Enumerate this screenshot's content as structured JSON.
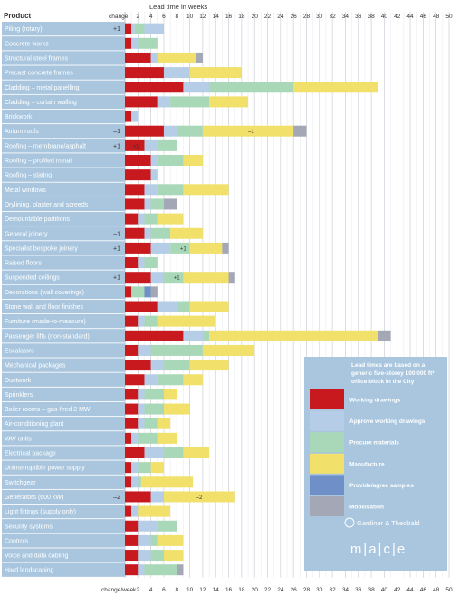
{
  "chart_data": {
    "type": "bar",
    "title": "Lead time in weeks",
    "header_product": "Product",
    "header_change": "change",
    "footer_change": "change/week",
    "xlim": [
      0,
      50
    ],
    "x_ticks": [
      2,
      4,
      6,
      8,
      10,
      12,
      14,
      16,
      18,
      20,
      22,
      24,
      26,
      28,
      30,
      32,
      34,
      36,
      38,
      40,
      42,
      44,
      46,
      48,
      50
    ],
    "grid": true,
    "legend_position": "bottom-right",
    "phases": [
      {
        "key": "wd",
        "name": "Working drawings",
        "color": "#c8191e"
      },
      {
        "key": "awd",
        "name": "Approve working drawings",
        "color": "#b5cde6"
      },
      {
        "key": "pm",
        "name": "Procure materials",
        "color": "#a9d8b8"
      },
      {
        "key": "man",
        "name": "Manufacture",
        "color": "#f1e06a"
      },
      {
        "key": "pas",
        "name": "Provide/agree samples",
        "color": "#6e8fc8"
      },
      {
        "key": "mob",
        "name": "Mobilisation",
        "color": "#a4a8b6"
      }
    ],
    "legend_note": "Lead times are based on a generic five-storey 100,000 ft² office block in the City",
    "legend_brand_1": "Gardiner & Theobald",
    "legend_brand_2": "m|a|c|e",
    "rows": [
      {
        "label": "Piling (rotary)",
        "change": "+1",
        "segments": [
          [
            "wd",
            1
          ],
          [
            "awd",
            0.5
          ],
          [
            "pm",
            1.5
          ],
          [
            "awd",
            3
          ],
          [
            "mob",
            0
          ]
        ],
        "notes": []
      },
      {
        "label": "Concrete works",
        "change": "",
        "segments": [
          [
            "wd",
            1
          ],
          [
            "awd",
            1
          ],
          [
            "pm",
            3
          ]
        ],
        "notes": []
      },
      {
        "label": "Structural steel frames",
        "change": "",
        "segments": [
          [
            "wd",
            4
          ],
          [
            "awd",
            1
          ],
          [
            "man",
            6
          ],
          [
            "mob",
            1
          ]
        ],
        "notes": []
      },
      {
        "label": "Precast concrete frames",
        "change": "",
        "segments": [
          [
            "wd",
            6
          ],
          [
            "awd",
            4
          ],
          [
            "man",
            8
          ]
        ],
        "notes": []
      },
      {
        "label": "Cladding – metal panelling",
        "change": "",
        "segments": [
          [
            "wd",
            9
          ],
          [
            "awd",
            4
          ],
          [
            "pm",
            13
          ],
          [
            "man",
            13
          ]
        ],
        "notes": []
      },
      {
        "label": "Cladding – curtain walling",
        "change": "",
        "segments": [
          [
            "wd",
            5
          ],
          [
            "awd",
            2
          ],
          [
            "pm",
            6
          ],
          [
            "man",
            6
          ]
        ],
        "notes": []
      },
      {
        "label": "Brickwork",
        "change": "",
        "segments": [
          [
            "wd",
            1
          ],
          [
            "awd",
            1
          ]
        ],
        "notes": []
      },
      {
        "label": "Atrium roofs",
        "change": "–1",
        "segments": [
          [
            "wd",
            6
          ],
          [
            "awd",
            2
          ],
          [
            "pm",
            4
          ],
          [
            "man",
            14
          ],
          [
            "mob",
            2
          ]
        ],
        "notes": [
          {
            "text": "–1",
            "at": 19
          }
        ]
      },
      {
        "label": "Roofing – membrane/asphalt",
        "change": "+1",
        "segments": [
          [
            "wd",
            3
          ],
          [
            "awd",
            2
          ],
          [
            "pm",
            3
          ]
        ],
        "notes": [
          {
            "text": "+1",
            "at": 1.2
          }
        ]
      },
      {
        "label": "Roofing – profiled metal",
        "change": "",
        "segments": [
          [
            "wd",
            4
          ],
          [
            "awd",
            1
          ],
          [
            "pm",
            4
          ],
          [
            "man",
            3
          ]
        ],
        "notes": []
      },
      {
        "label": "Roofing – slating",
        "change": "",
        "segments": [
          [
            "wd",
            4
          ],
          [
            "awd",
            1
          ]
        ],
        "notes": []
      },
      {
        "label": "Metal windows",
        "change": "",
        "segments": [
          [
            "wd",
            3
          ],
          [
            "awd",
            2
          ],
          [
            "pm",
            4
          ],
          [
            "man",
            7
          ]
        ],
        "notes": []
      },
      {
        "label": "Drylining, plaster and screeds",
        "change": "",
        "segments": [
          [
            "wd",
            3
          ],
          [
            "awd",
            1
          ],
          [
            "pm",
            2
          ],
          [
            "mob",
            2
          ]
        ],
        "notes": []
      },
      {
        "label": "Demountable partitions",
        "change": "",
        "segments": [
          [
            "wd",
            2
          ],
          [
            "awd",
            1
          ],
          [
            "pm",
            2
          ],
          [
            "man",
            4
          ]
        ],
        "notes": []
      },
      {
        "label": "General joinery",
        "change": "–1",
        "segments": [
          [
            "wd",
            3
          ],
          [
            "awd",
            1
          ],
          [
            "pm",
            3
          ],
          [
            "man",
            5
          ]
        ],
        "notes": []
      },
      {
        "label": "Specialist bespoke joinery",
        "change": "+1",
        "segments": [
          [
            "wd",
            4
          ],
          [
            "awd",
            3
          ],
          [
            "pm",
            3
          ],
          [
            "man",
            5
          ],
          [
            "mob",
            1
          ]
        ],
        "notes": [
          {
            "text": "+1",
            "at": 8.5
          }
        ]
      },
      {
        "label": "Raised floors",
        "change": "",
        "segments": [
          [
            "wd",
            2
          ],
          [
            "awd",
            1
          ],
          [
            "pm",
            2
          ]
        ],
        "notes": []
      },
      {
        "label": "Suspended ceilings",
        "change": "+1",
        "segments": [
          [
            "wd",
            4
          ],
          [
            "awd",
            2
          ],
          [
            "pm",
            3
          ],
          [
            "man",
            7
          ],
          [
            "mob",
            1
          ]
        ],
        "notes": [
          {
            "text": "+1",
            "at": 7.5
          }
        ]
      },
      {
        "label": "Decorations (wall coverings)",
        "change": "",
        "segments": [
          [
            "wd",
            1
          ],
          [
            "pm",
            2
          ],
          [
            "pas",
            1
          ],
          [
            "mob",
            1
          ]
        ],
        "notes": []
      },
      {
        "label": "Stone wall and floor finishes",
        "change": "",
        "segments": [
          [
            "wd",
            5
          ],
          [
            "awd",
            3
          ],
          [
            "pm",
            2
          ],
          [
            "man",
            6
          ]
        ],
        "notes": []
      },
      {
        "label": "Furniture (made-to-measure)",
        "change": "",
        "segments": [
          [
            "wd",
            2
          ],
          [
            "awd",
            1
          ],
          [
            "pm",
            2
          ],
          [
            "man",
            9
          ]
        ],
        "notes": []
      },
      {
        "label": "Passenger lifts (non-standard)",
        "change": "",
        "segments": [
          [
            "wd",
            9
          ],
          [
            "awd",
            3
          ],
          [
            "pm",
            1
          ],
          [
            "man",
            26
          ],
          [
            "mob",
            2
          ]
        ],
        "notes": []
      },
      {
        "label": "Escalators",
        "change": "",
        "segments": [
          [
            "wd",
            2
          ],
          [
            "awd",
            2
          ],
          [
            "pm",
            8
          ],
          [
            "man",
            8
          ]
        ],
        "notes": []
      },
      {
        "label": "Mechanical packages",
        "change": "",
        "segments": [
          [
            "wd",
            4
          ],
          [
            "awd",
            2
          ],
          [
            "pm",
            4
          ],
          [
            "man",
            6
          ]
        ],
        "notes": []
      },
      {
        "label": "Ductwork",
        "change": "",
        "segments": [
          [
            "wd",
            3
          ],
          [
            "awd",
            2
          ],
          [
            "pm",
            4
          ],
          [
            "man",
            3
          ]
        ],
        "notes": []
      },
      {
        "label": "Sprinklers",
        "change": "",
        "segments": [
          [
            "wd",
            2
          ],
          [
            "awd",
            1
          ],
          [
            "pm",
            3
          ],
          [
            "man",
            2
          ]
        ],
        "notes": []
      },
      {
        "label": "Boiler rooms – gas-fired 2 MW",
        "change": "",
        "segments": [
          [
            "wd",
            2
          ],
          [
            "awd",
            1
          ],
          [
            "pm",
            3
          ],
          [
            "man",
            4
          ]
        ],
        "notes": []
      },
      {
        "label": "Air-conditioning plant",
        "change": "",
        "segments": [
          [
            "wd",
            2
          ],
          [
            "awd",
            1
          ],
          [
            "pm",
            2
          ],
          [
            "man",
            2
          ]
        ],
        "notes": []
      },
      {
        "label": "VAV units",
        "change": "",
        "segments": [
          [
            "wd",
            1
          ],
          [
            "awd",
            1
          ],
          [
            "pm",
            3
          ],
          [
            "man",
            3
          ]
        ],
        "notes": []
      },
      {
        "label": "Electrical package",
        "change": "",
        "segments": [
          [
            "wd",
            3
          ],
          [
            "awd",
            3
          ],
          [
            "pm",
            3
          ],
          [
            "man",
            4
          ]
        ],
        "notes": []
      },
      {
        "label": "Uninterruptible power supply",
        "change": "",
        "segments": [
          [
            "wd",
            1
          ],
          [
            "awd",
            1
          ],
          [
            "pm",
            2
          ],
          [
            "man",
            2
          ]
        ],
        "notes": []
      },
      {
        "label": "Switchgear",
        "change": "",
        "segments": [
          [
            "wd",
            1
          ],
          [
            "awd",
            1
          ],
          [
            "pm",
            0.5
          ],
          [
            "man",
            8
          ]
        ],
        "notes": []
      },
      {
        "label": "Generators (600 kW)",
        "change": "–2",
        "segments": [
          [
            "wd",
            4
          ],
          [
            "awd",
            2
          ],
          [
            "man",
            11
          ]
        ],
        "notes": [
          {
            "text": "–2",
            "at": 11
          }
        ]
      },
      {
        "label": "Light fittings (supply only)",
        "change": "",
        "segments": [
          [
            "wd",
            1
          ],
          [
            "awd",
            1
          ],
          [
            "man",
            5
          ]
        ],
        "notes": []
      },
      {
        "label": "Security systems",
        "change": "",
        "segments": [
          [
            "wd",
            2
          ],
          [
            "awd",
            3
          ],
          [
            "pm",
            3
          ]
        ],
        "notes": []
      },
      {
        "label": "Controls",
        "change": "",
        "segments": [
          [
            "wd",
            2
          ],
          [
            "awd",
            2
          ],
          [
            "pm",
            1
          ],
          [
            "man",
            4
          ]
        ],
        "notes": []
      },
      {
        "label": "Voice and data cabling",
        "change": "",
        "segments": [
          [
            "wd",
            2
          ],
          [
            "awd",
            2
          ],
          [
            "pm",
            2
          ],
          [
            "man",
            3
          ]
        ],
        "notes": []
      },
      {
        "label": "Hard landscaping",
        "change": "",
        "segments": [
          [
            "wd",
            2
          ],
          [
            "awd",
            1
          ],
          [
            "pm",
            5
          ],
          [
            "mob",
            1
          ]
        ],
        "notes": []
      }
    ]
  }
}
